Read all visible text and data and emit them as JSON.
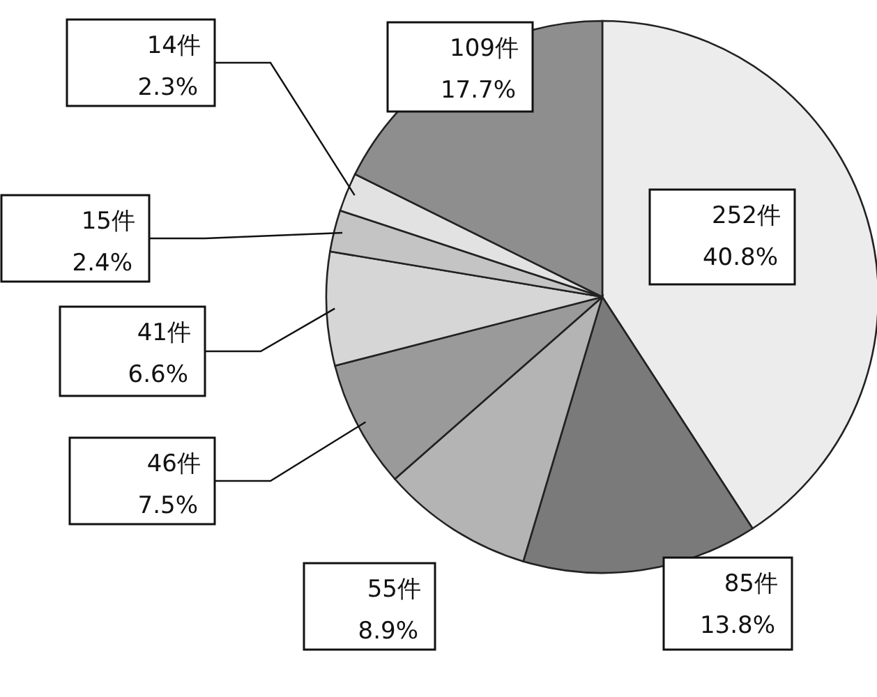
{
  "chart_data": {
    "type": "pie",
    "categories": [
      null,
      null,
      null,
      null,
      null,
      null,
      null,
      null
    ],
    "values": [
      252,
      85,
      55,
      46,
      41,
      15,
      14,
      109
    ],
    "colors": [
      "#ececec",
      "#7a7a7a",
      "#b4b4b4",
      "#9a9a9a",
      "#d6d6d6",
      "#c4c4c4",
      "#e2e2e2",
      "#8e8e8e"
    ],
    "value_labels": [
      "252件\n40.8%",
      "85件\n13.8%",
      "55件\n8.9%",
      "46件\n7.5%",
      "41件\n6.6%",
      "15件\n2.4%",
      "14件\n2.3%",
      "109件\n17.7%"
    ]
  }
}
